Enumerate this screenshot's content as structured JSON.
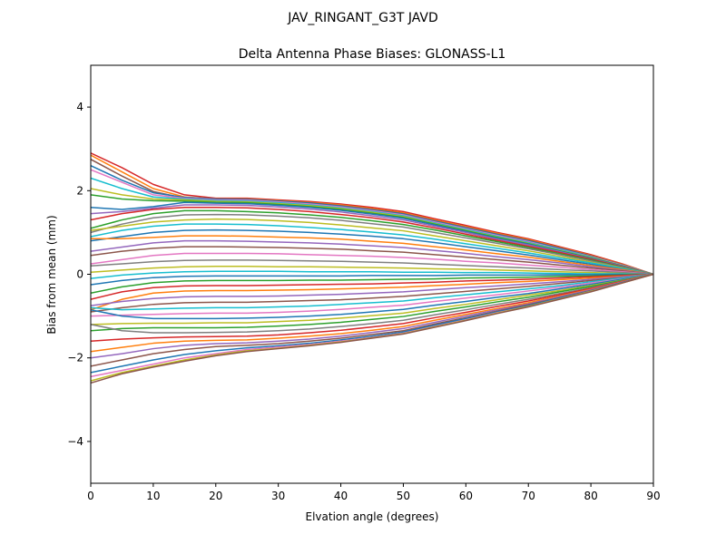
{
  "figure": {
    "suptitle": "JAV_RINGANT_G3T JAVD"
  },
  "chart_data": {
    "type": "line",
    "title": "Delta Antenna Phase Biases: GLONASS-L1",
    "xlabel": "Elvation angle (degrees)",
    "ylabel": "Bias from mean (mm)",
    "xlim": [
      0,
      90
    ],
    "ylim": [
      -5,
      5
    ],
    "xticks": [
      0,
      10,
      20,
      30,
      40,
      50,
      60,
      70,
      80,
      90
    ],
    "yticks": [
      -4,
      -2,
      0,
      2,
      4
    ],
    "xtick_labels": [
      "0",
      "10",
      "20",
      "30",
      "40",
      "50",
      "60",
      "70",
      "80",
      "90"
    ],
    "ytick_labels": [
      "−4",
      "−2",
      "0",
      "2",
      "4"
    ],
    "grid": false,
    "legend": "none",
    "x": [
      0,
      5,
      10,
      15,
      20,
      25,
      30,
      35,
      40,
      45,
      50,
      55,
      60,
      65,
      70,
      75,
      80,
      85,
      90
    ],
    "series": [
      {
        "values": [
          2.9,
          2.55,
          2.15,
          1.9,
          1.82,
          1.82,
          1.78,
          1.74,
          1.68,
          1.6,
          1.5,
          1.33,
          1.17,
          1.0,
          0.85,
          0.66,
          0.47,
          0.25,
          0.0
        ],
        "color": "#d62728"
      },
      {
        "values": [
          2.85,
          2.45,
          2.05,
          1.85,
          1.8,
          1.8,
          1.76,
          1.72,
          1.66,
          1.57,
          1.47,
          1.3,
          1.14,
          0.98,
          0.83,
          0.64,
          0.45,
          0.24,
          0.0
        ],
        "color": "#ff7f0e"
      },
      {
        "values": [
          2.75,
          2.35,
          1.98,
          1.82,
          1.79,
          1.79,
          1.75,
          1.71,
          1.64,
          1.55,
          1.45,
          1.28,
          1.12,
          0.96,
          0.81,
          0.63,
          0.44,
          0.23,
          0.0
        ],
        "color": "#8c564b"
      },
      {
        "values": [
          2.6,
          2.25,
          1.95,
          1.84,
          1.8,
          1.79,
          1.75,
          1.7,
          1.63,
          1.54,
          1.44,
          1.27,
          1.11,
          0.95,
          0.8,
          0.62,
          0.43,
          0.22,
          0.0
        ],
        "color": "#1f77b4"
      },
      {
        "values": [
          2.5,
          2.2,
          1.9,
          1.82,
          1.78,
          1.77,
          1.73,
          1.68,
          1.61,
          1.52,
          1.42,
          1.25,
          1.09,
          0.93,
          0.78,
          0.6,
          0.42,
          0.22,
          0.0
        ],
        "color": "#e377c2"
      },
      {
        "values": [
          2.3,
          2.05,
          1.85,
          1.8,
          1.76,
          1.75,
          1.71,
          1.66,
          1.59,
          1.5,
          1.4,
          1.23,
          1.07,
          0.91,
          0.76,
          0.59,
          0.41,
          0.21,
          0.0
        ],
        "color": "#17becf"
      },
      {
        "values": [
          2.05,
          1.9,
          1.8,
          1.78,
          1.74,
          1.73,
          1.69,
          1.64,
          1.57,
          1.48,
          1.38,
          1.21,
          1.05,
          0.89,
          0.74,
          0.57,
          0.4,
          0.21,
          0.0
        ],
        "color": "#bcbd22"
      },
      {
        "values": [
          1.9,
          1.8,
          1.76,
          1.75,
          1.72,
          1.71,
          1.67,
          1.62,
          1.55,
          1.46,
          1.36,
          1.2,
          1.04,
          0.88,
          0.73,
          0.56,
          0.39,
          0.2,
          0.0
        ],
        "color": "#2ca02c"
      },
      {
        "values": [
          1.6,
          1.55,
          1.62,
          1.72,
          1.7,
          1.69,
          1.65,
          1.6,
          1.53,
          1.44,
          1.34,
          1.18,
          1.02,
          0.86,
          0.72,
          0.55,
          0.38,
          0.2,
          0.0
        ],
        "color": "#1f77b4"
      },
      {
        "values": [
          1.45,
          1.5,
          1.58,
          1.66,
          1.66,
          1.65,
          1.61,
          1.56,
          1.49,
          1.4,
          1.3,
          1.15,
          1.0,
          0.84,
          0.7,
          0.54,
          0.37,
          0.19,
          0.0
        ],
        "color": "#9467bd"
      },
      {
        "values": [
          1.3,
          1.45,
          1.55,
          1.6,
          1.6,
          1.59,
          1.55,
          1.5,
          1.43,
          1.35,
          1.25,
          1.11,
          0.96,
          0.81,
          0.67,
          0.52,
          0.36,
          0.18,
          0.0
        ],
        "color": "#d62728"
      },
      {
        "values": [
          1.1,
          1.3,
          1.45,
          1.52,
          1.52,
          1.5,
          1.47,
          1.42,
          1.36,
          1.28,
          1.19,
          1.06,
          0.92,
          0.78,
          0.64,
          0.49,
          0.34,
          0.17,
          0.0
        ],
        "color": "#2ca02c"
      },
      {
        "values": [
          1.0,
          1.2,
          1.35,
          1.42,
          1.43,
          1.42,
          1.39,
          1.35,
          1.29,
          1.21,
          1.13,
          1.0,
          0.87,
          0.74,
          0.61,
          0.47,
          0.32,
          0.16,
          0.0
        ],
        "color": "#7f7f7f"
      },
      {
        "values": [
          1.05,
          1.15,
          1.25,
          1.3,
          1.32,
          1.31,
          1.28,
          1.24,
          1.18,
          1.11,
          1.04,
          0.92,
          0.8,
          0.68,
          0.56,
          0.43,
          0.29,
          0.15,
          0.0
        ],
        "color": "#bcbd22"
      },
      {
        "values": [
          0.9,
          1.05,
          1.15,
          1.2,
          1.2,
          1.19,
          1.16,
          1.12,
          1.07,
          1.01,
          0.94,
          0.84,
          0.73,
          0.62,
          0.51,
          0.39,
          0.27,
          0.14,
          0.0
        ],
        "color": "#17becf"
      },
      {
        "values": [
          0.8,
          0.9,
          1.0,
          1.05,
          1.06,
          1.05,
          1.03,
          1.0,
          0.96,
          0.91,
          0.85,
          0.76,
          0.66,
          0.56,
          0.46,
          0.35,
          0.24,
          0.12,
          0.0
        ],
        "color": "#1f77b4"
      },
      {
        "values": [
          0.85,
          0.85,
          0.88,
          0.92,
          0.92,
          0.91,
          0.89,
          0.87,
          0.84,
          0.79,
          0.74,
          0.66,
          0.58,
          0.49,
          0.41,
          0.31,
          0.21,
          0.11,
          0.0
        ],
        "color": "#ff7f0e"
      },
      {
        "values": [
          0.55,
          0.65,
          0.75,
          0.8,
          0.8,
          0.79,
          0.77,
          0.75,
          0.72,
          0.68,
          0.64,
          0.57,
          0.5,
          0.42,
          0.35,
          0.27,
          0.18,
          0.09,
          0.0
        ],
        "color": "#9467bd"
      },
      {
        "values": [
          0.45,
          0.55,
          0.62,
          0.66,
          0.66,
          0.65,
          0.64,
          0.62,
          0.6,
          0.56,
          0.53,
          0.47,
          0.41,
          0.35,
          0.29,
          0.22,
          0.15,
          0.08,
          0.0
        ],
        "color": "#8c564b"
      },
      {
        "values": [
          0.25,
          0.35,
          0.45,
          0.5,
          0.5,
          0.5,
          0.49,
          0.47,
          0.45,
          0.43,
          0.4,
          0.36,
          0.31,
          0.27,
          0.22,
          0.17,
          0.11,
          0.06,
          0.0
        ],
        "color": "#e377c2"
      },
      {
        "values": [
          0.2,
          0.25,
          0.3,
          0.33,
          0.34,
          0.34,
          0.33,
          0.32,
          0.31,
          0.29,
          0.27,
          0.24,
          0.21,
          0.18,
          0.15,
          0.11,
          0.08,
          0.04,
          0.0
        ],
        "color": "#7f7f7f"
      },
      {
        "values": [
          0.05,
          0.1,
          0.15,
          0.18,
          0.19,
          0.19,
          0.18,
          0.18,
          0.17,
          0.16,
          0.15,
          0.13,
          0.12,
          0.1,
          0.08,
          0.06,
          0.04,
          0.02,
          0.0
        ],
        "color": "#bcbd22"
      },
      {
        "values": [
          -0.1,
          -0.02,
          0.03,
          0.06,
          0.07,
          0.07,
          0.07,
          0.06,
          0.06,
          0.06,
          0.05,
          0.05,
          0.04,
          0.04,
          0.03,
          0.02,
          0.01,
          0.01,
          0.0
        ],
        "color": "#17becf"
      },
      {
        "values": [
          -0.25,
          -0.15,
          -0.08,
          -0.05,
          -0.04,
          -0.04,
          -0.04,
          -0.04,
          -0.04,
          -0.03,
          -0.03,
          -0.03,
          -0.02,
          -0.02,
          -0.02,
          -0.01,
          -0.01,
          0.0,
          0.0
        ],
        "color": "#1f77b4"
      },
      {
        "values": [
          -0.45,
          -0.3,
          -0.2,
          -0.16,
          -0.15,
          -0.15,
          -0.15,
          -0.14,
          -0.14,
          -0.13,
          -0.12,
          -0.11,
          -0.09,
          -0.08,
          -0.07,
          -0.05,
          -0.04,
          -0.02,
          0.0
        ],
        "color": "#2ca02c"
      },
      {
        "values": [
          -0.6,
          -0.42,
          -0.32,
          -0.28,
          -0.27,
          -0.27,
          -0.26,
          -0.25,
          -0.24,
          -0.23,
          -0.21,
          -0.19,
          -0.16,
          -0.14,
          -0.12,
          -0.09,
          -0.06,
          -0.03,
          0.0
        ],
        "color": "#d62728"
      },
      {
        "values": [
          -0.85,
          -0.6,
          -0.45,
          -0.4,
          -0.39,
          -0.39,
          -0.38,
          -0.37,
          -0.35,
          -0.33,
          -0.31,
          -0.27,
          -0.24,
          -0.2,
          -0.17,
          -0.13,
          -0.09,
          -0.05,
          0.0
        ],
        "color": "#ff7f0e"
      },
      {
        "values": [
          -0.75,
          -0.65,
          -0.58,
          -0.54,
          -0.53,
          -0.53,
          -0.52,
          -0.5,
          -0.48,
          -0.45,
          -0.42,
          -0.37,
          -0.32,
          -0.28,
          -0.23,
          -0.18,
          -0.12,
          -0.06,
          0.0
        ],
        "color": "#9467bd"
      },
      {
        "values": [
          -0.9,
          -0.8,
          -0.72,
          -0.68,
          -0.67,
          -0.67,
          -0.65,
          -0.63,
          -0.61,
          -0.57,
          -0.53,
          -0.47,
          -0.41,
          -0.35,
          -0.29,
          -0.22,
          -0.15,
          -0.08,
          0.0
        ],
        "color": "#8c564b"
      },
      {
        "values": [
          -0.8,
          -0.85,
          -0.83,
          -0.81,
          -0.8,
          -0.8,
          -0.78,
          -0.76,
          -0.72,
          -0.68,
          -0.64,
          -0.56,
          -0.49,
          -0.42,
          -0.35,
          -0.27,
          -0.18,
          -0.09,
          0.0
        ],
        "color": "#17becf"
      },
      {
        "values": [
          -1.0,
          -0.98,
          -0.96,
          -0.94,
          -0.93,
          -0.93,
          -0.91,
          -0.88,
          -0.84,
          -0.79,
          -0.74,
          -0.65,
          -0.57,
          -0.49,
          -0.4,
          -0.31,
          -0.21,
          -0.11,
          0.0
        ],
        "color": "#e377c2"
      },
      {
        "values": [
          -0.85,
          -1.0,
          -1.06,
          -1.06,
          -1.06,
          -1.05,
          -1.03,
          -1.0,
          -0.96,
          -0.9,
          -0.84,
          -0.74,
          -0.65,
          -0.55,
          -0.46,
          -0.35,
          -0.24,
          -0.12,
          0.0
        ],
        "color": "#1f77b4"
      },
      {
        "values": [
          -1.2,
          -1.18,
          -1.17,
          -1.17,
          -1.16,
          -1.16,
          -1.13,
          -1.1,
          -1.05,
          -0.99,
          -0.93,
          -0.82,
          -0.72,
          -0.61,
          -0.5,
          -0.39,
          -0.27,
          -0.14,
          0.0
        ],
        "color": "#bcbd22"
      },
      {
        "values": [
          -1.35,
          -1.3,
          -1.28,
          -1.28,
          -1.28,
          -1.27,
          -1.24,
          -1.2,
          -1.15,
          -1.08,
          -1.01,
          -0.89,
          -0.78,
          -0.66,
          -0.55,
          -0.42,
          -0.29,
          -0.15,
          0.0
        ],
        "color": "#2ca02c"
      },
      {
        "values": [
          -1.2,
          -1.35,
          -1.4,
          -1.4,
          -1.39,
          -1.38,
          -1.35,
          -1.31,
          -1.25,
          -1.18,
          -1.1,
          -0.97,
          -0.85,
          -0.72,
          -0.6,
          -0.46,
          -0.32,
          -0.16,
          0.0
        ],
        "color": "#7f7f7f"
      },
      {
        "values": [
          -1.6,
          -1.55,
          -1.52,
          -1.5,
          -1.49,
          -1.48,
          -1.45,
          -1.4,
          -1.34,
          -1.26,
          -1.18,
          -1.04,
          -0.91,
          -0.77,
          -0.64,
          -0.49,
          -0.34,
          -0.17,
          0.0
        ],
        "color": "#d62728"
      },
      {
        "values": [
          -1.85,
          -1.75,
          -1.65,
          -1.6,
          -1.58,
          -1.57,
          -1.53,
          -1.48,
          -1.42,
          -1.34,
          -1.25,
          -1.1,
          -0.96,
          -0.82,
          -0.68,
          -0.52,
          -0.36,
          -0.18,
          0.0
        ],
        "color": "#ff7f0e"
      },
      {
        "values": [
          -2.0,
          -1.9,
          -1.78,
          -1.7,
          -1.66,
          -1.64,
          -1.6,
          -1.55,
          -1.48,
          -1.39,
          -1.3,
          -1.15,
          -1.0,
          -0.85,
          -0.71,
          -0.54,
          -0.37,
          -0.19,
          0.0
        ],
        "color": "#9467bd"
      },
      {
        "values": [
          -2.2,
          -2.05,
          -1.9,
          -1.8,
          -1.73,
          -1.7,
          -1.66,
          -1.6,
          -1.53,
          -1.44,
          -1.35,
          -1.19,
          -1.04,
          -0.88,
          -0.73,
          -0.56,
          -0.39,
          -0.2,
          0.0
        ],
        "color": "#8c564b"
      },
      {
        "values": [
          -2.35,
          -2.2,
          -2.05,
          -1.92,
          -1.83,
          -1.76,
          -1.71,
          -1.65,
          -1.57,
          -1.48,
          -1.38,
          -1.22,
          -1.06,
          -0.9,
          -0.75,
          -0.57,
          -0.4,
          -0.2,
          0.0
        ],
        "color": "#1f77b4"
      },
      {
        "values": [
          -2.45,
          -2.3,
          -2.15,
          -2.0,
          -1.9,
          -1.8,
          -1.74,
          -1.68,
          -1.6,
          -1.51,
          -1.41,
          -1.25,
          -1.09,
          -0.92,
          -0.77,
          -0.59,
          -0.41,
          -0.21,
          0.0
        ],
        "color": "#e377c2"
      },
      {
        "values": [
          -2.55,
          -2.35,
          -2.2,
          -2.05,
          -1.93,
          -1.83,
          -1.77,
          -1.7,
          -1.62,
          -1.52,
          -1.42,
          -1.26,
          -1.1,
          -0.93,
          -0.77,
          -0.59,
          -0.41,
          -0.21,
          0.0
        ],
        "color": "#bcbd22"
      },
      {
        "values": [
          -2.6,
          -2.38,
          -2.22,
          -2.08,
          -1.95,
          -1.85,
          -1.78,
          -1.71,
          -1.63,
          -1.53,
          -1.43,
          -1.27,
          -1.11,
          -0.94,
          -0.78,
          -0.6,
          -0.42,
          -0.21,
          0.0
        ],
        "color": "#8c564b"
      }
    ]
  }
}
